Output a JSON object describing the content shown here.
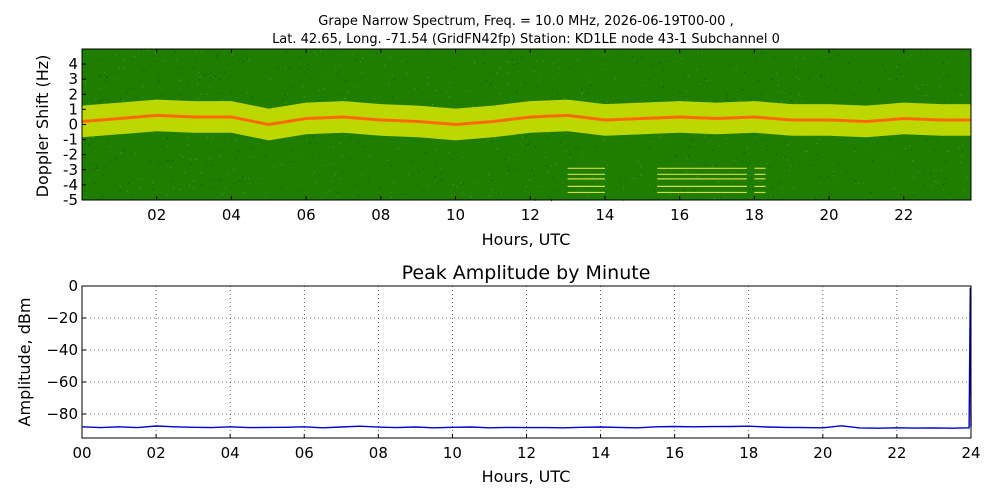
{
  "figure": {
    "title_line1": "Grape Narrow Spectrum, Freq. = 10.0 MHz, 2026-06-19T00-00 ,",
    "title_line2": "Lat.  42.65, Long. -71.54 (GridFN42fp) Station: KD1LE node 43-1 Subchannel 0"
  },
  "chart_data": [
    {
      "type": "heatmap",
      "title": "",
      "xlabel": "Hours, UTC",
      "ylabel": "Doppler Shift (Hz)",
      "xlim": [
        0,
        23.8
      ],
      "ylim": [
        -5,
        5
      ],
      "x_ticks": [
        2,
        4,
        6,
        8,
        10,
        12,
        14,
        16,
        18,
        20,
        22
      ],
      "x_tick_labels": [
        "02",
        "04",
        "06",
        "08",
        "10",
        "12",
        "14",
        "16",
        "18",
        "20",
        "22"
      ],
      "y_ticks": [
        4,
        3,
        2,
        1,
        0,
        -1,
        -2,
        -3,
        -4,
        -5
      ],
      "y_tick_labels": [
        "4",
        "3",
        "2",
        "1",
        "0",
        "-1",
        "-2",
        "-3",
        "-4",
        "-5"
      ],
      "colors": {
        "background": "#1f7d00",
        "band_outer": "#d8e800",
        "band_core": "#ff6a00",
        "spur": "#d7dc3a"
      },
      "carrier_trace": [
        {
          "x": 0.0,
          "y": 0.2
        },
        {
          "x": 1.0,
          "y": 0.4
        },
        {
          "x": 2.0,
          "y": 0.6
        },
        {
          "x": 3.0,
          "y": 0.5
        },
        {
          "x": 4.0,
          "y": 0.5
        },
        {
          "x": 5.0,
          "y": 0.0
        },
        {
          "x": 6.0,
          "y": 0.4
        },
        {
          "x": 7.0,
          "y": 0.5
        },
        {
          "x": 8.0,
          "y": 0.3
        },
        {
          "x": 9.0,
          "y": 0.2
        },
        {
          "x": 10.0,
          "y": 0.0
        },
        {
          "x": 11.0,
          "y": 0.2
        },
        {
          "x": 12.0,
          "y": 0.5
        },
        {
          "x": 13.0,
          "y": 0.6
        },
        {
          "x": 14.0,
          "y": 0.3
        },
        {
          "x": 15.0,
          "y": 0.4
        },
        {
          "x": 16.0,
          "y": 0.5
        },
        {
          "x": 17.0,
          "y": 0.4
        },
        {
          "x": 18.0,
          "y": 0.5
        },
        {
          "x": 19.0,
          "y": 0.3
        },
        {
          "x": 20.0,
          "y": 0.3
        },
        {
          "x": 21.0,
          "y": 0.2
        },
        {
          "x": 22.0,
          "y": 0.4
        },
        {
          "x": 23.0,
          "y": 0.3
        },
        {
          "x": 23.8,
          "y": 0.3
        }
      ],
      "spur_segments": [
        {
          "x_start": 13.0,
          "x_end": 14.0,
          "y_values": [
            -2.9,
            -3.3,
            -3.6,
            -4.1,
            -4.5
          ]
        },
        {
          "x_start": 15.4,
          "x_end": 17.8,
          "y_values": [
            -2.9,
            -3.3,
            -3.6,
            -4.1,
            -4.5
          ]
        },
        {
          "x_start": 18.0,
          "x_end": 18.3,
          "y_values": [
            -2.9,
            -3.3,
            -3.6,
            -4.1,
            -4.5
          ]
        }
      ]
    },
    {
      "type": "line",
      "title": "Peak Amplitude by Minute",
      "xlabel": "Hours, UTC",
      "ylabel": "Amplitude, dBm",
      "xlim": [
        0,
        24
      ],
      "ylim": [
        -95,
        0
      ],
      "grid": true,
      "x_ticks": [
        0,
        2,
        4,
        6,
        8,
        10,
        12,
        14,
        16,
        18,
        20,
        22,
        24
      ],
      "x_tick_labels": [
        "00",
        "02",
        "04",
        "06",
        "08",
        "10",
        "12",
        "14",
        "16",
        "18",
        "20",
        "22",
        "24"
      ],
      "y_ticks": [
        0,
        -20,
        -40,
        -60,
        -80
      ],
      "y_tick_labels": [
        "0",
        "−20",
        "−40",
        "−60",
        "−80"
      ],
      "line_color": "#0000cc",
      "series": [
        {
          "x": [
            0.0,
            0.5,
            1.0,
            1.5,
            2.0,
            2.5,
            3.0,
            3.5,
            4.0,
            4.5,
            5.0,
            5.5,
            6.0,
            6.5,
            7.0,
            7.5,
            8.0,
            8.5,
            9.0,
            9.5,
            10.0,
            10.5,
            11.0,
            11.5,
            12.0,
            12.5,
            13.0,
            13.5,
            14.0,
            14.5,
            15.0,
            15.5,
            16.0,
            16.5,
            17.0,
            17.5,
            18.0,
            18.5,
            19.0,
            19.5,
            20.0,
            20.5,
            21.0,
            21.5,
            22.0,
            22.5,
            23.0,
            23.5,
            23.95,
            23.98,
            24.0
          ],
          "values": [
            -88,
            -88.5,
            -88,
            -88.5,
            -87.5,
            -88,
            -88.3,
            -88.5,
            -88,
            -88.5,
            -88.4,
            -88.3,
            -88,
            -88.6,
            -88.1,
            -87.6,
            -88.2,
            -88.5,
            -88.1,
            -88.6,
            -88.3,
            -88.1,
            -88.6,
            -88.4,
            -88.5,
            -88.5,
            -88.6,
            -88.3,
            -88.1,
            -88.4,
            -88.6,
            -88,
            -87.8,
            -88,
            -87.9,
            -87.8,
            -87.6,
            -88.1,
            -88.4,
            -88.5,
            -88.6,
            -87.4,
            -88.7,
            -88.9,
            -88.6,
            -88.8,
            -88.7,
            -88.9,
            -88.6,
            -1,
            -88
          ]
        }
      ]
    }
  ]
}
